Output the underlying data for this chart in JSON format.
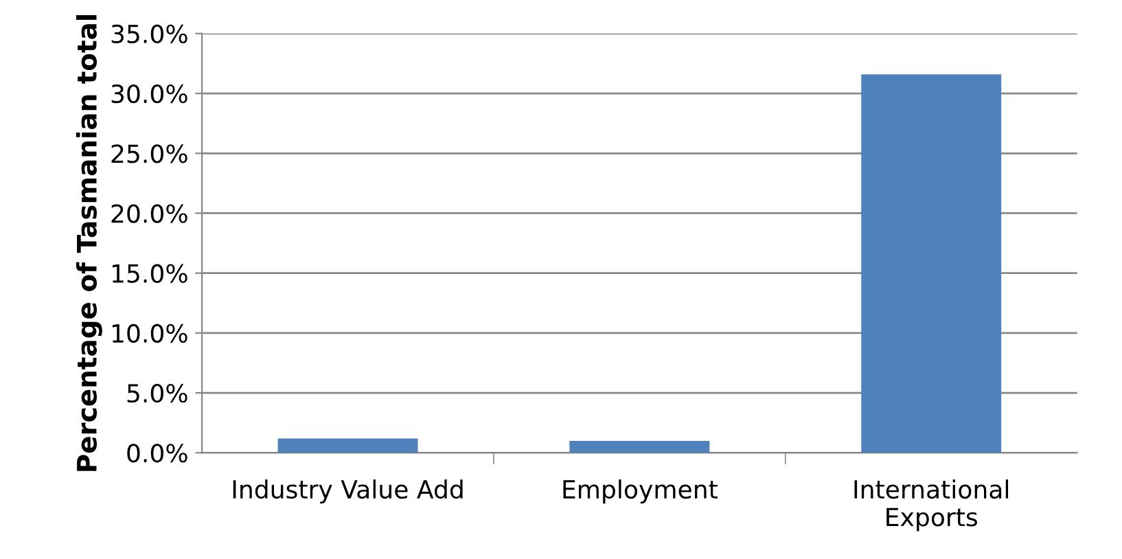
{
  "chart_data": {
    "type": "bar",
    "ylabel": "Percentage of Tasmanian total",
    "categories": [
      "Industry Value Add",
      "Employment",
      "International\nExports"
    ],
    "values": [
      1.2,
      1.0,
      31.6
    ],
    "color": "#4f81bd",
    "ylim": [
      0,
      35
    ],
    "yticks": [
      {
        "value": 0,
        "label": "0.0%"
      },
      {
        "value": 5,
        "label": "5.0%"
      },
      {
        "value": 10,
        "label": "10.0%"
      },
      {
        "value": 15,
        "label": "15.0%"
      },
      {
        "value": 20,
        "label": "20.0%"
      },
      {
        "value": 25,
        "label": "25.0%"
      },
      {
        "value": 30,
        "label": "30.0%"
      },
      {
        "value": 35,
        "label": "35.0%"
      }
    ],
    "grid": "y",
    "legend": false
  }
}
